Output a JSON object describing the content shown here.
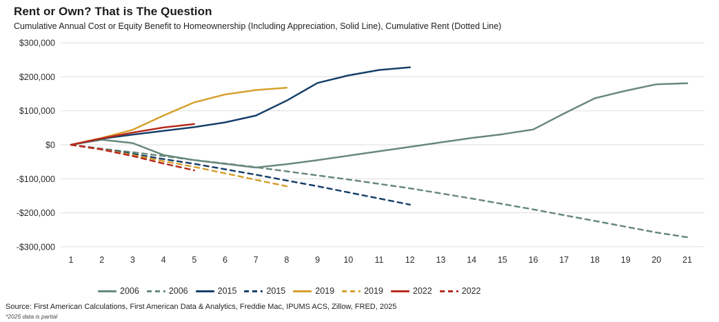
{
  "header": {
    "title": "Rent or Own? That is The Question",
    "subtitle": "Cumulative Annual Cost or Equity Benefit to Homeownership (Including Appreciation, Solid Line), Cumulative Rent (Dotted Line)"
  },
  "footer": {
    "source": "Source: First American Calculations, First American Data & Analytics, Freddie Mac, IPUMS ACS, Zillow, FRED, 2025",
    "footnote": "*2025 data is partial"
  },
  "colors": {
    "green_2006": "#67897a",
    "navy_2015": "#17406a",
    "orange_2019": "#d6a02e",
    "red_2022": "#b7291c",
    "gridline": "#e3e3e3",
    "tick_text": "#2b2b2b"
  },
  "chart_data": {
    "type": "line",
    "title": "Rent or Own? That is The Question",
    "xlabel": "",
    "ylabel": "",
    "x_ticks": [
      1,
      2,
      3,
      4,
      5,
      6,
      7,
      8,
      9,
      10,
      11,
      12,
      13,
      14,
      15,
      16,
      17,
      18,
      19,
      20,
      21
    ],
    "ylim": [
      -300000,
      300000
    ],
    "grid": true,
    "legend_position": "bottom",
    "y_ticks": [
      {
        "value": 300000,
        "label": "$300,000"
      },
      {
        "value": 200000,
        "label": "$200,000"
      },
      {
        "value": 100000,
        "label": "$100,000"
      },
      {
        "value": 0,
        "label": "$0"
      },
      {
        "value": -100000,
        "label": "-$100,000"
      },
      {
        "value": -200000,
        "label": "-$200,000"
      },
      {
        "value": -300000,
        "label": "-$300,000"
      }
    ],
    "series": [
      {
        "name": "2006",
        "style": "solid",
        "color_key": "green_2006",
        "x_start": 1,
        "values": [
          0,
          15000,
          5000,
          -30000,
          -45000,
          -56000,
          -67000,
          -57000,
          -45000,
          -32000,
          -19000,
          -6000,
          7000,
          20000,
          31000,
          45000,
          92000,
          137000,
          159000,
          178000,
          181000
        ]
      },
      {
        "name": "2006",
        "style": "dashed",
        "color_key": "green_2006",
        "x_start": 1,
        "values": [
          0,
          -12000,
          -22000,
          -33000,
          -45000,
          -55000,
          -66000,
          -78000,
          -90000,
          -102000,
          -115000,
          -128000,
          -143000,
          -158000,
          -174000,
          -190000,
          -207000,
          -224000,
          -241000,
          -258000,
          -272000
        ]
      },
      {
        "name": "2015",
        "style": "solid",
        "color_key": "navy_2015",
        "x_start": 1,
        "values": [
          0,
          18000,
          30000,
          41000,
          52000,
          66000,
          86000,
          130000,
          182000,
          204000,
          220000,
          228000
        ]
      },
      {
        "name": "2015",
        "style": "dashed",
        "color_key": "navy_2015",
        "x_start": 1,
        "values": [
          0,
          -12000,
          -27000,
          -42000,
          -56000,
          -72000,
          -88000,
          -105000,
          -122000,
          -140000,
          -158000,
          -176000
        ]
      },
      {
        "name": "2019",
        "style": "solid",
        "color_key": "orange_2019",
        "x_start": 1,
        "values": [
          0,
          20000,
          44000,
          86000,
          125000,
          148000,
          161000,
          168000
        ]
      },
      {
        "name": "2019",
        "style": "dashed",
        "color_key": "orange_2019",
        "x_start": 1,
        "values": [
          0,
          -13000,
          -30000,
          -48000,
          -65000,
          -84000,
          -103000,
          -122000
        ]
      },
      {
        "name": "2022",
        "style": "solid",
        "color_key": "red_2022",
        "x_start": 1,
        "values": [
          0,
          19000,
          36000,
          51000,
          61000
        ]
      },
      {
        "name": "2022",
        "style": "dashed",
        "color_key": "red_2022",
        "x_start": 1,
        "values": [
          0,
          -14000,
          -33000,
          -55000,
          -75000
        ]
      }
    ]
  }
}
